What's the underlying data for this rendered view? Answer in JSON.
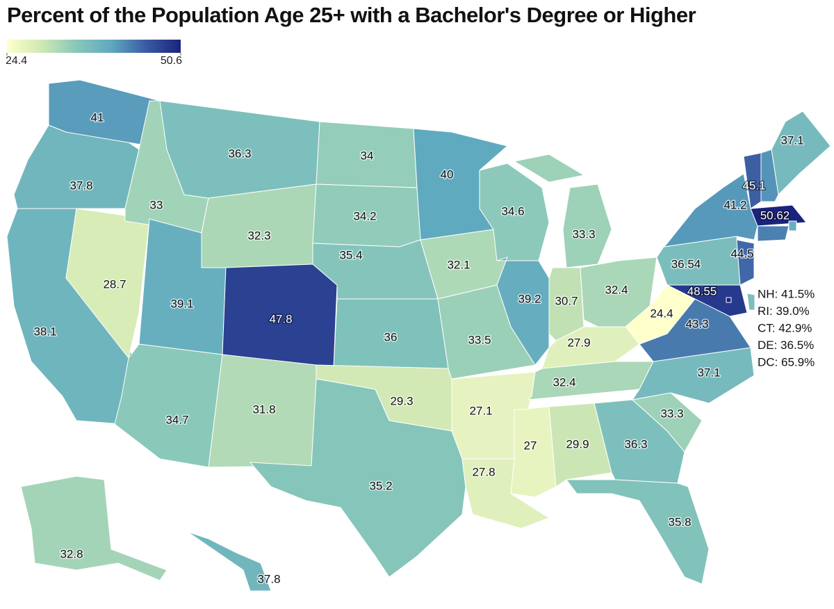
{
  "title": "Percent of the Population Age 25+ with a Bachelor's Degree or Higher",
  "legend": {
    "min": 24.4,
    "max": 50.6,
    "colors": [
      "#ffffcc",
      "#cfe8b4",
      "#88c7ba",
      "#5fa9c0",
      "#3a5ba3",
      "#1a237e"
    ]
  },
  "states": [
    41,
    37.8,
    38.1,
    28.7,
    33,
    36.3,
    32.3,
    39.1,
    47.8,
    34.7,
    31.8,
    34,
    34.2,
    35.4,
    36,
    29.3,
    35.2,
    40,
    32.1,
    33.5,
    27.1,
    27.8,
    34.6,
    39.2,
    33.3,
    30.7,
    32.4,
    27.9,
    32.4,
    27,
    29.9,
    36.3,
    35.8,
    33.3,
    37.1,
    43.3,
    24.4,
    36.54,
    41.2,
    44.5,
    48.55,
    45.1,
    37.1,
    50.62,
    32.8,
    37.8
  ],
  "annotations": [
    {
      "label": "NH: 41.5%",
      "value": 41.5
    },
    {
      "label": "RI: 39.0%",
      "value": 39.0
    },
    {
      "label": "CT: 42.9%",
      "value": 42.9
    },
    {
      "label": "DE: 36.5%",
      "value": 36.5
    },
    {
      "label": "DC: 65.9%",
      "value": 65.9
    }
  ]
}
